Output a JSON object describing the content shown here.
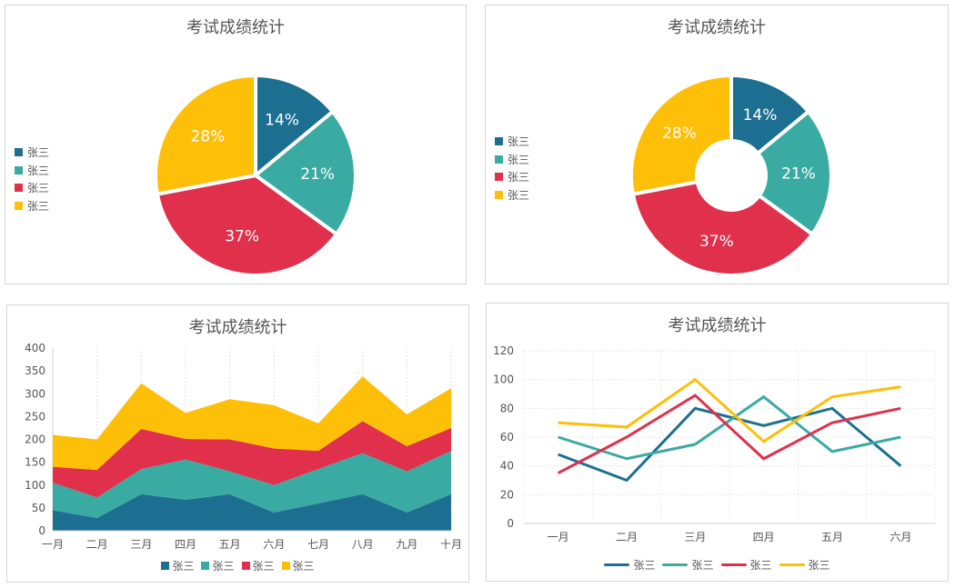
{
  "colors": {
    "blue": "#1d6f91",
    "teal": "#3aaba3",
    "red": "#e0304c",
    "yellow": "#fdbf08"
  },
  "chart_data": [
    {
      "type": "pie",
      "title": "考试成绩统计",
      "labels": [
        "张三",
        "张三",
        "张三",
        "张三"
      ],
      "values": [
        14,
        21,
        37,
        28
      ],
      "value_labels": [
        "14%",
        "21%",
        "37%",
        "28%"
      ],
      "legend": "left"
    },
    {
      "type": "pie",
      "subtype": "donut",
      "title": "考试成绩统计",
      "labels": [
        "张三",
        "张三",
        "张三",
        "张三"
      ],
      "values": [
        14,
        21,
        37,
        28
      ],
      "value_labels": [
        "14%",
        "21%",
        "37%",
        "28%"
      ],
      "legend": "left"
    },
    {
      "type": "area",
      "stacked": true,
      "title": "考试成绩统计",
      "categories": [
        "一月",
        "二月",
        "三月",
        "四月",
        "五月",
        "六月",
        "七月",
        "八月",
        "九月",
        "十月"
      ],
      "yticks": [
        "0",
        "50",
        "100",
        "150",
        "200",
        "250",
        "300",
        "350",
        "400"
      ],
      "ylim": [
        0,
        400
      ],
      "series": [
        {
          "name": "张三",
          "values": [
            45,
            28,
            80,
            68,
            80,
            40,
            60,
            80,
            40,
            80
          ]
        },
        {
          "name": "张三",
          "values": [
            60,
            45,
            55,
            88,
            50,
            60,
            75,
            90,
            90,
            95
          ]
        },
        {
          "name": "张三",
          "values": [
            35,
            60,
            88,
            45,
            70,
            80,
            40,
            70,
            55,
            50
          ]
        },
        {
          "name": "张三",
          "values": [
            70,
            67,
            100,
            57,
            88,
            95,
            60,
            98,
            70,
            87
          ]
        }
      ],
      "legend": "bottom"
    },
    {
      "type": "line",
      "title": "考试成绩统计",
      "categories": [
        "一月",
        "二月",
        "三月",
        "四月",
        "五月",
        "六月"
      ],
      "yticks": [
        "0",
        "20",
        "40",
        "60",
        "80",
        "100",
        "120"
      ],
      "ylim": [
        0,
        120
      ],
      "series": [
        {
          "name": "张三",
          "values": [
            48,
            30,
            80,
            68,
            80,
            40
          ]
        },
        {
          "name": "张三",
          "values": [
            60,
            45,
            55,
            88,
            50,
            60
          ]
        },
        {
          "name": "张三",
          "values": [
            35,
            60,
            89,
            45,
            70,
            80
          ]
        },
        {
          "name": "张三",
          "values": [
            70,
            67,
            100,
            57,
            88,
            95
          ]
        }
      ],
      "legend": "bottom"
    }
  ]
}
